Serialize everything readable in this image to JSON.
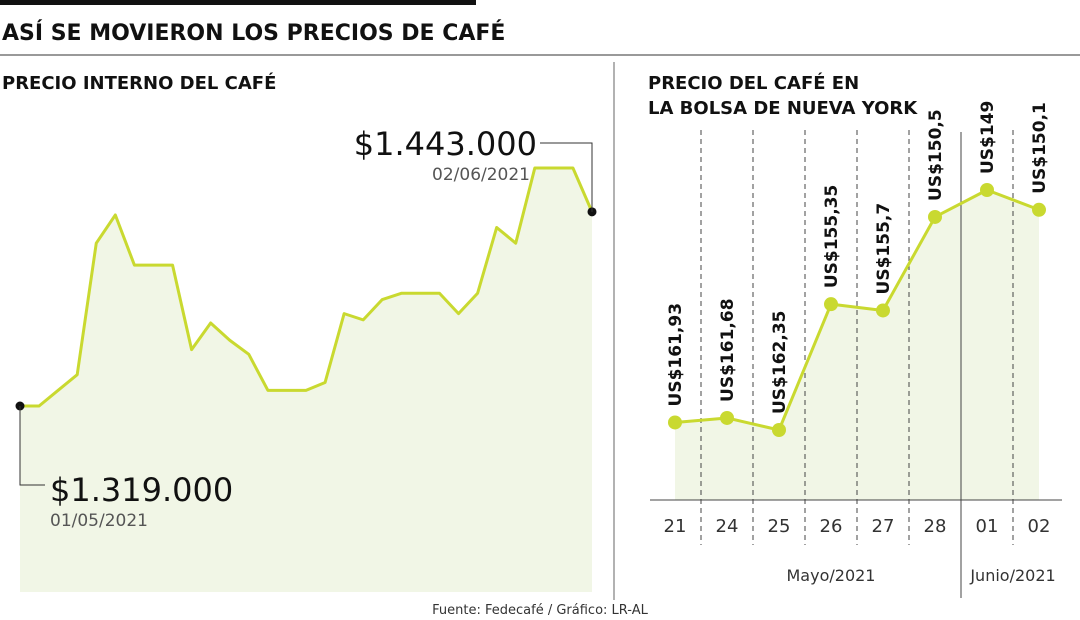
{
  "header": {
    "title": "ASÍ SE MOVIERON LOS PRECIOS DE CAFÉ"
  },
  "source": "Fuente: Fedecafé / Gráfico: LR-AL",
  "chart_data": [
    {
      "type": "area",
      "title": "PRECIO INTERNO DEL CAFÉ",
      "color": "#c9d930",
      "fill": "#f1f6e6",
      "categories": [
        "01/05/2021",
        null,
        null,
        null,
        null,
        null,
        null,
        null,
        null,
        null,
        null,
        null,
        null,
        null,
        null,
        null,
        null,
        null,
        null,
        null,
        null,
        null,
        null,
        null,
        null,
        null,
        null,
        null,
        null,
        null,
        "02/06/2021"
      ],
      "values": [
        1319000,
        1319000,
        1329000,
        1339000,
        1423000,
        1441000,
        1409000,
        1409000,
        1409000,
        1355000,
        1372000,
        1361000,
        1352000,
        1329000,
        1329000,
        1329000,
        1334000,
        1378000,
        1374000,
        1387000,
        1391000,
        1391000,
        1391000,
        1378000,
        1391000,
        1433000,
        1423000,
        1471000,
        1471000,
        1471000,
        1443000
      ],
      "value_labels": [
        "$1.319.000",
        null,
        null,
        null,
        null,
        null,
        null,
        null,
        null,
        null,
        null,
        null,
        null,
        null,
        null,
        null,
        null,
        null,
        null,
        null,
        null,
        null,
        null,
        null,
        null,
        null,
        null,
        null,
        null,
        null,
        "$1.443.000"
      ]
    },
    {
      "type": "line",
      "title_lines": [
        "PRECIO DEL CAFÉ EN",
        "LA BOLSA DE NUEVA YORK"
      ],
      "color": "#c9d930",
      "fill": "#f1f6e6",
      "categories": [
        "21",
        "24",
        "25",
        "26",
        "27",
        "28",
        "01",
        "02"
      ],
      "values": [
        161.93,
        161.68,
        162.35,
        155.35,
        155.7,
        150.5,
        149,
        150.1
      ],
      "value_labels": [
        "US$161,93",
        "US$161,68",
        "US$162,35",
        "US$155,35",
        "US$155,7",
        "US$150,5",
        "US$149",
        "US$150,1"
      ],
      "month_groups": [
        {
          "name": "Mayo/2021",
          "count": 6
        },
        {
          "name": "Junio/2021",
          "count": 2
        }
      ]
    }
  ]
}
